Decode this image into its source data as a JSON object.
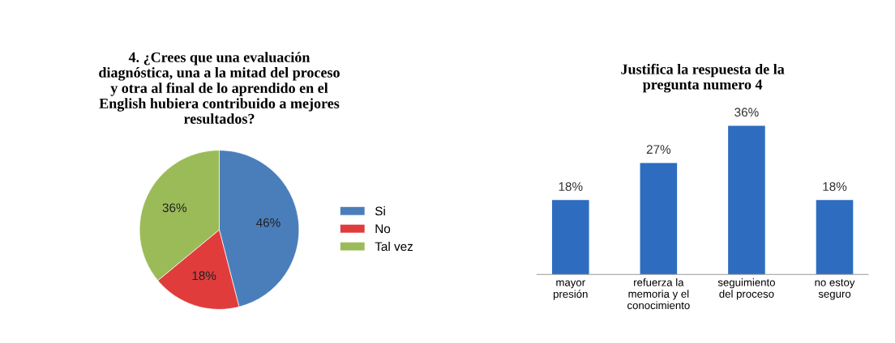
{
  "chart_data": [
    {
      "type": "pie",
      "title": "4. ¿Crees que una evaluación\ndiagnóstica, una a la mitad del proceso\ny otra al final de lo aprendido en el\nEnglish hubiera contribuido a mejores\nresultados?",
      "categories": [
        "Si",
        "No",
        "Tal vez"
      ],
      "values": [
        46,
        18,
        36
      ],
      "value_labels": [
        "46%",
        "18%",
        "36%"
      ],
      "colors": [
        "#4a7ebb",
        "#e03c3c",
        "#9bbb59"
      ],
      "legend": "right"
    },
    {
      "type": "bar",
      "title": "Justifica la respuesta de la\npregunta numero 4",
      "categories": [
        "mayor\npresión",
        "refuerza la\nmemoria y el\nconocimiento",
        "seguimiento\ndel proceso",
        "no estoy\nseguro"
      ],
      "values": [
        18,
        27,
        36,
        18
      ],
      "value_labels": [
        "18%",
        "27%",
        "36%",
        "18%"
      ],
      "color": "#2e6cc0"
    }
  ]
}
